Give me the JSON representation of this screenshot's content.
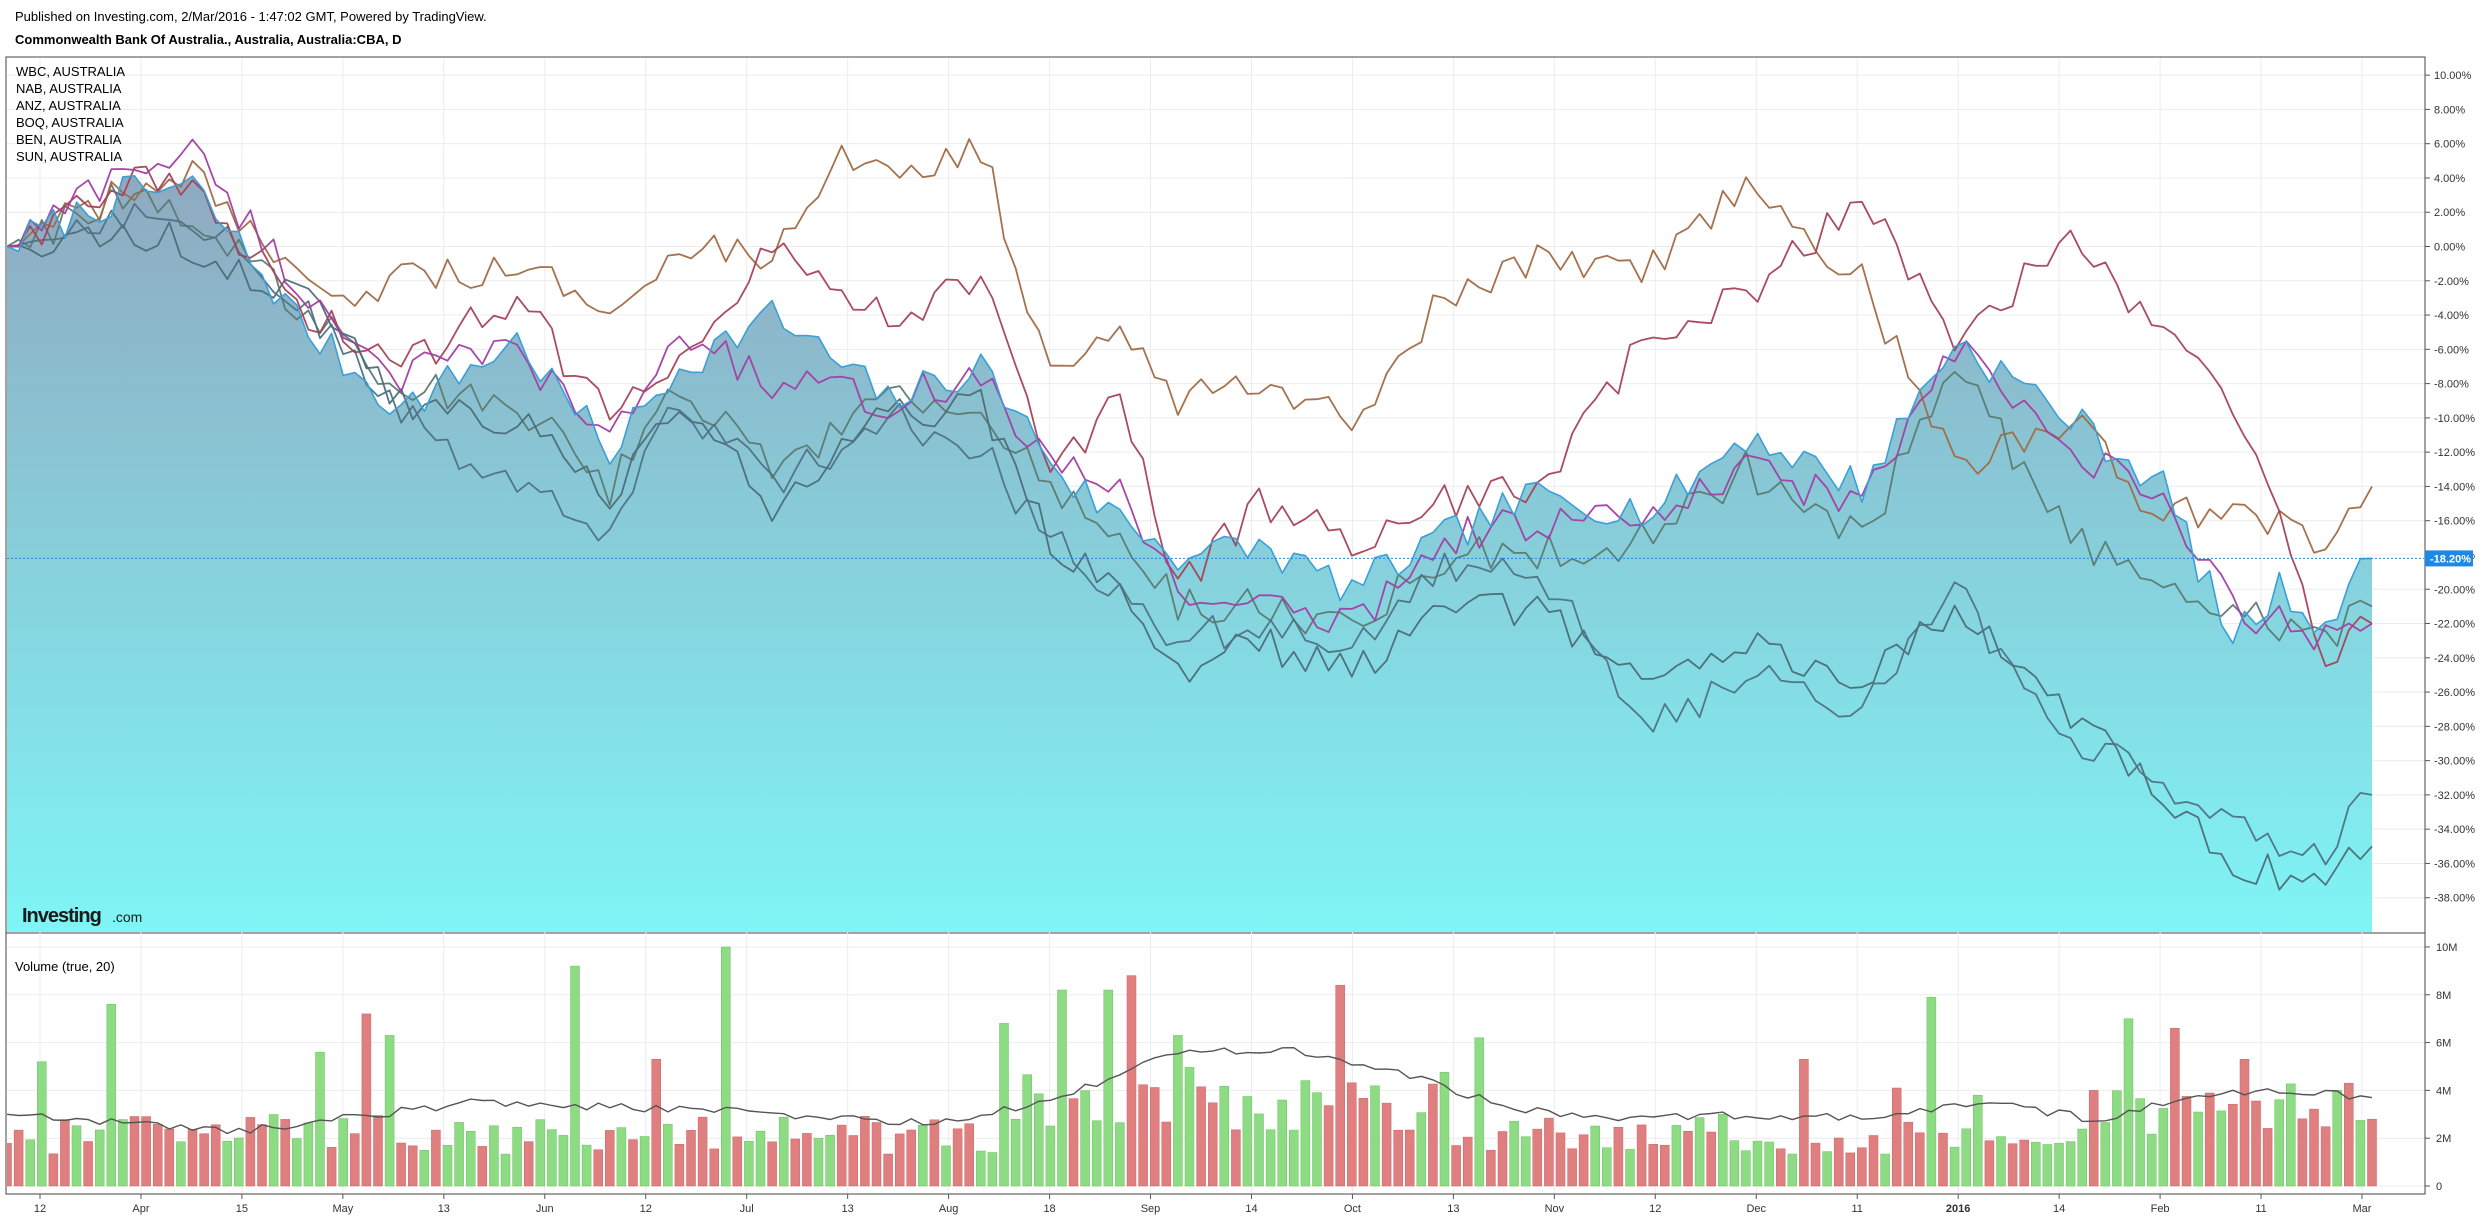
{
  "header": {
    "published": "Published on Investing.com, 2/Mar/2016 - 1:47:02 GMT, Powered by TradingView.",
    "symbol": "Commonwealth Bank Of Australia., Australia, Australia:CBA, D"
  },
  "logo": {
    "main": "Investing",
    "suffix": ".com"
  },
  "colors": {
    "main_line": "#3b9fd8",
    "main_fill_top": "#8fa9c0",
    "main_fill_bottom": "#7ff5f6",
    "vol_up": "#8ddc84",
    "vol_down": "#e07f7f",
    "vol_ma": "#555555",
    "last_badge": "#1e88e5",
    "grid": "#ececec"
  },
  "chart_data": [
    {
      "type": "line",
      "title": "Commonwealth Bank Of Australia., Australia, Australia:CBA, D",
      "x_ticks": [
        "12",
        "Apr",
        "15",
        "May",
        "13",
        "Jun",
        "12",
        "Jul",
        "13",
        "Aug",
        "18",
        "Sep",
        "14",
        "Oct",
        "13",
        "Nov",
        "12",
        "Dec",
        "11",
        "2016",
        "14",
        "Feb",
        "11",
        "Mar"
      ],
      "y_ticks": [
        "10.00%",
        "8.00%",
        "6.00%",
        "4.00%",
        "2.00%",
        "0.00%",
        "-2.00%",
        "-4.00%",
        "-6.00%",
        "-8.00%",
        "-10.00%",
        "-12.00%",
        "-14.00%",
        "-16.00%",
        "-18.00%",
        "-20.00%",
        "-22.00%",
        "-24.00%",
        "-26.00%",
        "-28.00%",
        "-30.00%",
        "-32.00%",
        "-34.00%",
        "-36.00%",
        "-38.00%"
      ],
      "ylim": [
        -40.0,
        11.0
      ],
      "last_value_label": "-18.20%",
      "last_value": -18.2,
      "legend": [
        "WBC, AUSTRALIA",
        "NAB, AUSTRALIA",
        "ANZ, AUSTRALIA",
        "BOQ, AUSTRALIA",
        "BEN, AUSTRALIA",
        "SUN, AUSTRALIA"
      ],
      "series": [
        {
          "name": "Commonwealth Bank Of Australia., Australia, Australia:CBA, D",
          "color": "#3b9fd8",
          "anchors": [
            [
              0,
              0
            ],
            [
              10,
              3
            ],
            [
              16,
              3.5
            ],
            [
              26,
              -5
            ],
            [
              34,
              -9.5
            ],
            [
              44,
              -5.5
            ],
            [
              52,
              -12
            ],
            [
              58,
              -7
            ],
            [
              66,
              -4
            ],
            [
              76,
              -9
            ],
            [
              84,
              -7
            ],
            [
              92,
              -14
            ],
            [
              101,
              -18
            ],
            [
              108,
              -17.5
            ],
            [
              116,
              -20
            ],
            [
              124,
              -17
            ],
            [
              132,
              -14.5
            ],
            [
              142,
              -15.5
            ],
            [
              150,
              -11
            ],
            [
              160,
              -14
            ],
            [
              168,
              -5.5
            ],
            [
              178,
              -10
            ],
            [
              186,
              -14
            ],
            [
              192,
              -23
            ],
            [
              196,
              -20
            ],
            [
              200,
              -22
            ],
            [
              204,
              -18.2
            ]
          ]
        },
        {
          "name": "WBC, AUSTRALIA",
          "color": "#a23ea3",
          "anchors": [
            [
              0,
              0
            ],
            [
              10,
              4.5
            ],
            [
              16,
              5.5
            ],
            [
              26,
              -3
            ],
            [
              34,
              -7.5
            ],
            [
              44,
              -6
            ],
            [
              52,
              -11.5
            ],
            [
              58,
              -5
            ],
            [
              66,
              -8
            ],
            [
              76,
              -9
            ],
            [
              84,
              -7.5
            ],
            [
              90,
              -13
            ],
            [
              96,
              -14
            ],
            [
              101,
              -20
            ],
            [
              108,
              -21
            ],
            [
              116,
              -22
            ],
            [
              124,
              -17
            ],
            [
              132,
              -16
            ],
            [
              142,
              -16
            ],
            [
              150,
              -13
            ],
            [
              160,
              -15
            ],
            [
              168,
              -6
            ],
            [
              178,
              -12
            ],
            [
              186,
              -15
            ],
            [
              192,
              -21
            ],
            [
              200,
              -23
            ],
            [
              204,
              -22
            ]
          ]
        },
        {
          "name": "NAB, AUSTRALIA",
          "color": "#a44256",
          "anchors": [
            [
              0,
              0
            ],
            [
              10,
              4
            ],
            [
              16,
              3
            ],
            [
              26,
              -4
            ],
            [
              34,
              -7
            ],
            [
              44,
              -3
            ],
            [
              52,
              -10
            ],
            [
              58,
              -6
            ],
            [
              66,
              0
            ],
            [
              76,
              -4
            ],
            [
              84,
              -2
            ],
            [
              90,
              -13
            ],
            [
              96,
              -9
            ],
            [
              101,
              -20
            ],
            [
              108,
              -15
            ],
            [
              116,
              -17
            ],
            [
              124,
              -15
            ],
            [
              132,
              -14
            ],
            [
              142,
              -5
            ],
            [
              150,
              -3
            ],
            [
              160,
              3
            ],
            [
              168,
              -5
            ],
            [
              174,
              -2
            ],
            [
              178,
              0
            ],
            [
              186,
              -5
            ],
            [
              192,
              -9
            ],
            [
              200,
              -24
            ],
            [
              204,
              -22
            ]
          ]
        },
        {
          "name": "ANZ, AUSTRALIA",
          "color": "#a06a45",
          "anchors": [
            [
              0,
              0
            ],
            [
              10,
              3
            ],
            [
              16,
              4
            ],
            [
              26,
              -3
            ],
            [
              34,
              -2
            ],
            [
              44,
              -1.5
            ],
            [
              52,
              -3
            ],
            [
              58,
              0
            ],
            [
              66,
              -1
            ],
            [
              72,
              5
            ],
            [
              80,
              5
            ],
            [
              84,
              6
            ],
            [
              90,
              -8
            ],
            [
              96,
              -5
            ],
            [
              101,
              -9
            ],
            [
              108,
              -7.5
            ],
            [
              116,
              -10
            ],
            [
              124,
              -3
            ],
            [
              132,
              -1
            ],
            [
              142,
              -1
            ],
            [
              150,
              4
            ],
            [
              160,
              -2
            ],
            [
              168,
              -13
            ],
            [
              178,
              -10
            ],
            [
              186,
              -16
            ],
            [
              192,
              -15
            ],
            [
              200,
              -18
            ],
            [
              204,
              -14
            ]
          ]
        },
        {
          "name": "BOQ, AUSTRALIA",
          "color": "#4e7283",
          "anchors": [
            [
              0,
              0
            ],
            [
              10,
              2
            ],
            [
              16,
              2
            ],
            [
              26,
              -4
            ],
            [
              34,
              -10
            ],
            [
              44,
              -14
            ],
            [
              52,
              -17
            ],
            [
              58,
              -9
            ],
            [
              66,
              -14
            ],
            [
              76,
              -10
            ],
            [
              84,
              -12
            ],
            [
              90,
              -17
            ],
            [
              96,
              -20
            ],
            [
              101,
              -23
            ],
            [
              108,
              -22
            ],
            [
              116,
              -23
            ],
            [
              124,
              -19
            ],
            [
              132,
              -19
            ],
            [
              142,
              -28
            ],
            [
              150,
              -25
            ],
            [
              160,
              -27
            ],
            [
              168,
              -20
            ],
            [
              178,
              -29
            ],
            [
              186,
              -31
            ],
            [
              192,
              -34
            ],
            [
              200,
              -35
            ],
            [
              204,
              -32
            ]
          ]
        },
        {
          "name": "BEN, AUSTRALIA",
          "color": "#4b6d76",
          "anchors": [
            [
              0,
              0
            ],
            [
              10,
              1
            ],
            [
              16,
              0
            ],
            [
              26,
              -3
            ],
            [
              34,
              -9
            ],
            [
              44,
              -10
            ],
            [
              52,
              -15
            ],
            [
              58,
              -9
            ],
            [
              66,
              -15
            ],
            [
              76,
              -10
            ],
            [
              84,
              -9
            ],
            [
              90,
              -17
            ],
            [
              96,
              -20
            ],
            [
              101,
              -25
            ],
            [
              108,
              -23
            ],
            [
              116,
              -25
            ],
            [
              124,
              -21
            ],
            [
              132,
              -21
            ],
            [
              142,
              -26
            ],
            [
              150,
              -23
            ],
            [
              160,
              -25
            ],
            [
              168,
              -21
            ],
            [
              178,
              -27
            ],
            [
              186,
              -32
            ],
            [
              192,
              -36
            ],
            [
              200,
              -37
            ],
            [
              204,
              -35
            ]
          ]
        },
        {
          "name": "SUN, AUSTRALIA",
          "color": "#5a7a72",
          "anchors": [
            [
              0,
              0
            ],
            [
              10,
              3
            ],
            [
              16,
              2
            ],
            [
              26,
              -4
            ],
            [
              34,
              -8
            ],
            [
              44,
              -9
            ],
            [
              52,
              -14
            ],
            [
              58,
              -8
            ],
            [
              66,
              -13
            ],
            [
              76,
              -9
            ],
            [
              84,
              -9
            ],
            [
              90,
              -14
            ],
            [
              96,
              -17
            ],
            [
              101,
              -21
            ],
            [
              108,
              -21
            ],
            [
              116,
              -22
            ],
            [
              124,
              -18
            ],
            [
              132,
              -18
            ],
            [
              142,
              -17
            ],
            [
              150,
              -13
            ],
            [
              160,
              -17
            ],
            [
              168,
              -7
            ],
            [
              178,
              -17
            ],
            [
              186,
              -19
            ],
            [
              192,
              -21
            ],
            [
              200,
              -23
            ],
            [
              204,
              -21
            ]
          ]
        }
      ]
    },
    {
      "type": "bar",
      "title": "Volume (true, 20)",
      "y_ticks": [
        "10M",
        "8M",
        "6M",
        "4M",
        "2M",
        "0"
      ],
      "ylim": [
        0,
        10.5
      ],
      "unit": "M",
      "peaks": [
        [
          3,
          5.2,
          1
        ],
        [
          9,
          7.6,
          1
        ],
        [
          27,
          5.6,
          1
        ],
        [
          31,
          7.2,
          0
        ],
        [
          33,
          6.3,
          1
        ],
        [
          49,
          9.2,
          1
        ],
        [
          56,
          5.3,
          0
        ],
        [
          62,
          10,
          1
        ],
        [
          86,
          6.8,
          1
        ],
        [
          91,
          8.2,
          1
        ],
        [
          95,
          8.2,
          1
        ],
        [
          97,
          8.8,
          0
        ],
        [
          101,
          6.3,
          1
        ],
        [
          115,
          8.4,
          0
        ],
        [
          127,
          6.2,
          1
        ],
        [
          155,
          5.3,
          0
        ],
        [
          163,
          4.1,
          0
        ],
        [
          166,
          7.9,
          1
        ],
        [
          170,
          3.8,
          1
        ],
        [
          183,
          7.0,
          1
        ],
        [
          187,
          6.6,
          0
        ],
        [
          193,
          5.3,
          0
        ]
      ],
      "moving_average_anchors": [
        [
          0,
          3
        ],
        [
          20,
          2.3
        ],
        [
          40,
          3.5
        ],
        [
          60,
          3.2
        ],
        [
          80,
          2.6
        ],
        [
          90,
          3.5
        ],
        [
          100,
          5.5
        ],
        [
          110,
          5.8
        ],
        [
          120,
          4.8
        ],
        [
          130,
          3.2
        ],
        [
          140,
          2.8
        ],
        [
          150,
          3.0
        ],
        [
          160,
          2.8
        ],
        [
          170,
          3.5
        ],
        [
          180,
          2.8
        ],
        [
          190,
          3.8
        ],
        [
          196,
          4.0
        ],
        [
          204,
          3.7
        ]
      ]
    }
  ]
}
